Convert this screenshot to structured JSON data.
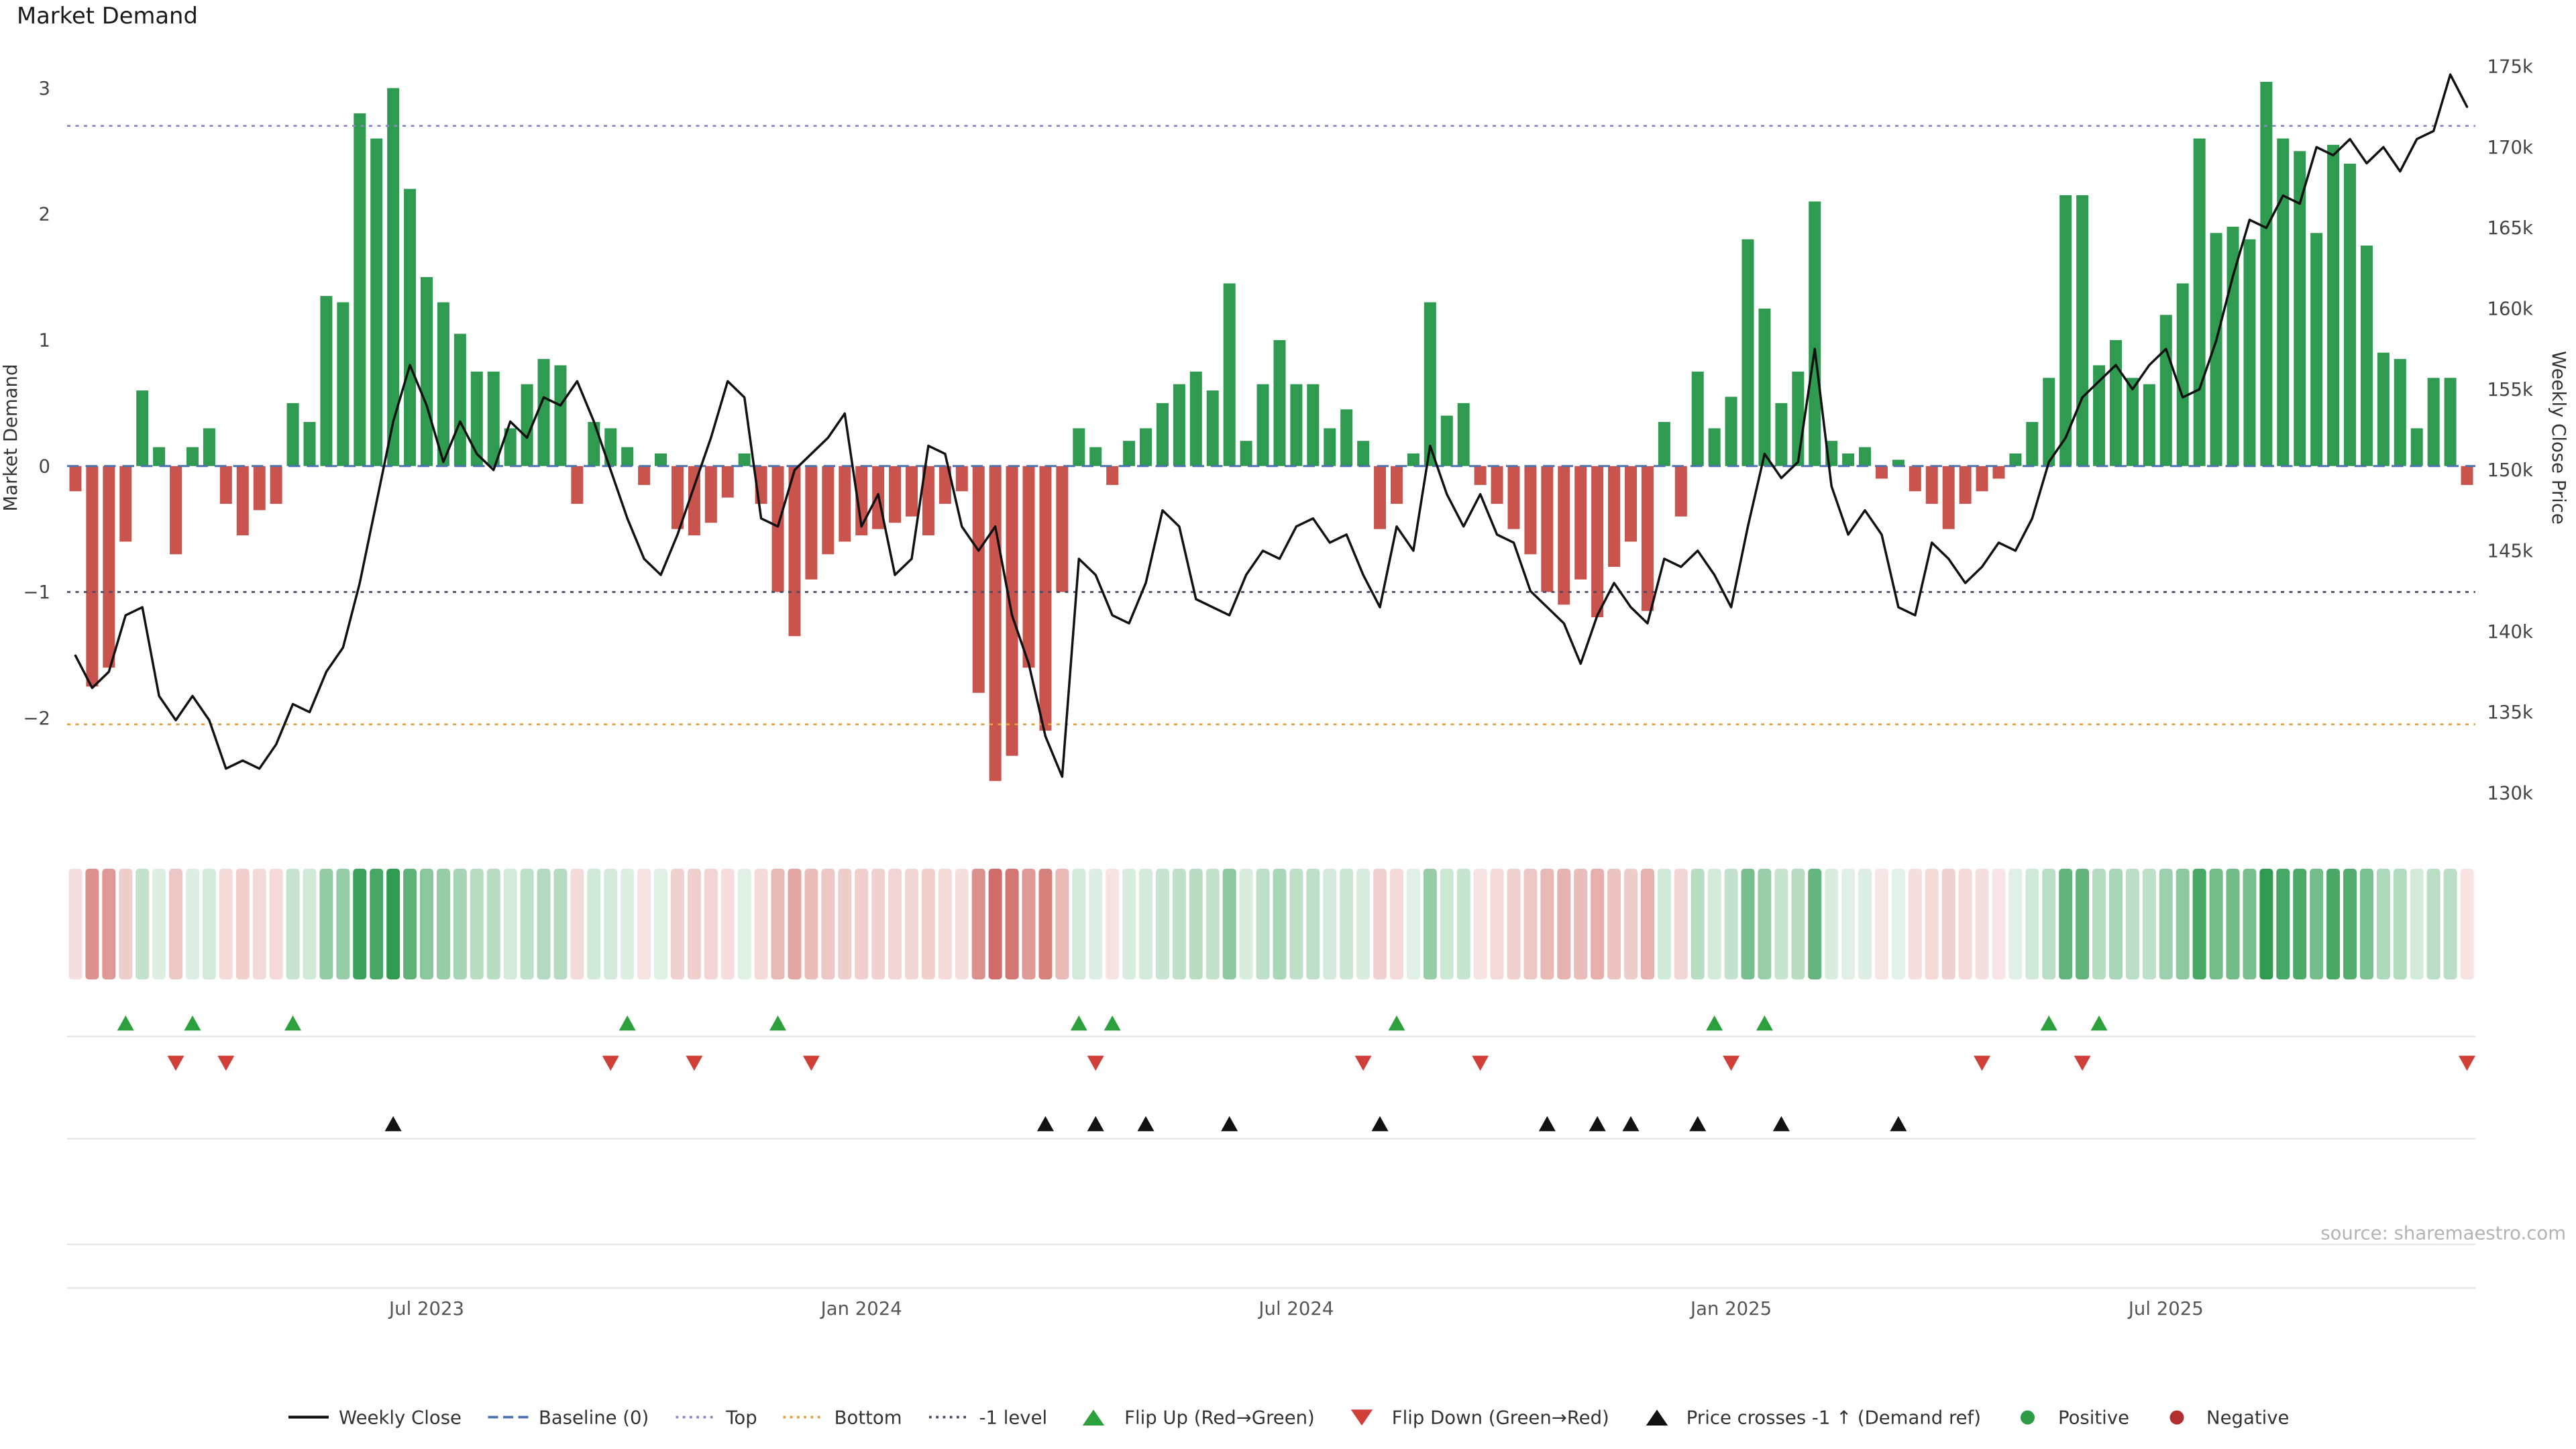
{
  "title": "Market Demand",
  "source": "source: sharemaestro.com",
  "axes": {
    "left_label": "Market Demand",
    "right_label": "Weekly Close Price",
    "left_ticks": [
      {
        "v": 3,
        "label": "3"
      },
      {
        "v": 2,
        "label": "2"
      },
      {
        "v": 1,
        "label": "1"
      },
      {
        "v": 0,
        "label": "0"
      },
      {
        "v": -1,
        "label": "−1"
      },
      {
        "v": -2,
        "label": "−2"
      }
    ],
    "right_ticks": [
      {
        "v": 175,
        "label": "175k"
      },
      {
        "v": 170,
        "label": "170k"
      },
      {
        "v": 165,
        "label": "165k"
      },
      {
        "v": 160,
        "label": "160k"
      },
      {
        "v": 155,
        "label": "155k"
      },
      {
        "v": 150,
        "label": "150k"
      },
      {
        "v": 145,
        "label": "145k"
      },
      {
        "v": 140,
        "label": "140k"
      },
      {
        "v": 135,
        "label": "135k"
      },
      {
        "v": 130,
        "label": "130k"
      }
    ],
    "x_ticks": [
      {
        "i": 21,
        "label": "Jul 2023"
      },
      {
        "i": 47,
        "label": "Jan 2024"
      },
      {
        "i": 73,
        "label": "Jul 2024"
      },
      {
        "i": 99,
        "label": "Jan 2025"
      },
      {
        "i": 125,
        "label": "Jul 2025"
      }
    ]
  },
  "colors": {
    "bar_positive": "#2e9b50",
    "bar_negative": "#c9544e",
    "price_line": "#111111",
    "baseline": "#4c72b0",
    "top": "#8888c6",
    "bottom": "#e5a13d",
    "minus1": "#4a4a68",
    "flip_up": "#2ca03c",
    "flip_down": "#d04038",
    "price_cross": "#111111",
    "positive_dot": "#2e9b47",
    "negative_dot": "#b22f2f",
    "grid": "#e7e7e7"
  },
  "legend": [
    {
      "label": "Weekly Close",
      "glyph": "line",
      "color": "#111111"
    },
    {
      "label": "Baseline (0)",
      "glyph": "dashed",
      "color": "#4c72b0"
    },
    {
      "label": "Top",
      "glyph": "dotted",
      "color": "#8888c6"
    },
    {
      "label": "Bottom",
      "glyph": "dotted",
      "color": "#e5a13d"
    },
    {
      "label": "-1 level",
      "glyph": "dotted",
      "color": "#4a4a68"
    },
    {
      "label": "Flip Up (Red→Green)",
      "glyph": "tri-up",
      "color": "#2ca03c"
    },
    {
      "label": "Flip Down (Green→Red)",
      "glyph": "tri-down",
      "color": "#d04038"
    },
    {
      "label": "Price crosses -1 ↑ (Demand ref)",
      "glyph": "tri-up",
      "color": "#111111"
    },
    {
      "label": "Positive",
      "glyph": "dot",
      "color": "#2e9b47"
    },
    {
      "label": "Negative",
      "glyph": "dot",
      "color": "#b22f2f"
    }
  ],
  "chart_data": {
    "type": "bar+line",
    "x_unit": "week_index",
    "title": "Market Demand",
    "demand_ylim": [
      -2.85,
      3.3
    ],
    "price_ylim": [
      128,
      176
    ],
    "levels": {
      "baseline": 0,
      "top": 2.7,
      "bottom": -2.05,
      "minus1": -1
    },
    "series": [
      {
        "name": "Market Demand",
        "type": "bar",
        "axis": "left",
        "values": [
          -0.2,
          -1.75,
          -1.6,
          -0.6,
          0.6,
          0.15,
          -0.7,
          0.15,
          0.3,
          -0.3,
          -0.55,
          -0.35,
          -0.3,
          0.5,
          0.35,
          1.35,
          1.3,
          2.8,
          2.6,
          3.0,
          2.2,
          1.5,
          1.3,
          1.05,
          0.75,
          0.75,
          0.3,
          0.65,
          0.85,
          0.8,
          -0.3,
          0.35,
          0.3,
          0.15,
          -0.15,
          0.1,
          -0.5,
          -0.55,
          -0.45,
          -0.25,
          0.1,
          -0.3,
          -1.0,
          -1.35,
          -0.9,
          -0.7,
          -0.6,
          -0.55,
          -0.5,
          -0.45,
          -0.4,
          -0.55,
          -0.3,
          -0.2,
          -1.8,
          -2.5,
          -2.3,
          -1.6,
          -2.1,
          -1.0,
          0.3,
          0.15,
          -0.15,
          0.2,
          0.3,
          0.5,
          0.65,
          0.75,
          0.6,
          1.45,
          0.2,
          0.65,
          1.0,
          0.65,
          0.65,
          0.3,
          0.45,
          0.2,
          -0.5,
          -0.3,
          0.1,
          1.3,
          0.4,
          0.5,
          -0.15,
          -0.3,
          -0.5,
          -0.7,
          -1.0,
          -1.1,
          -0.9,
          -1.2,
          -0.8,
          -0.6,
          -1.15,
          0.35,
          -0.4,
          0.75,
          0.3,
          0.55,
          1.8,
          1.25,
          0.5,
          0.75,
          2.1,
          0.2,
          0.1,
          0.15,
          -0.1,
          0.05,
          -0.2,
          -0.3,
          -0.5,
          -0.3,
          -0.2,
          -0.1,
          0.1,
          0.35,
          0.7,
          2.15,
          2.15,
          0.8,
          1.0,
          0.7,
          0.65,
          1.2,
          1.45,
          2.6,
          1.85,
          1.9,
          1.8,
          3.05,
          2.6,
          2.5,
          1.85,
          2.55,
          2.4,
          1.75,
          0.9,
          0.85,
          0.3,
          0.7,
          0.7,
          -0.15
        ]
      },
      {
        "name": "Weekly Close",
        "type": "line",
        "axis": "right",
        "values": [
          138.5,
          136.5,
          137.5,
          141,
          141.5,
          136,
          134.5,
          136,
          134.5,
          131.5,
          132,
          131.5,
          133,
          135.5,
          135,
          137.5,
          139,
          143,
          148,
          153,
          156.5,
          154,
          150.5,
          153,
          151,
          150,
          153,
          152,
          154.5,
          154,
          155.5,
          153,
          150,
          147,
          144.5,
          143.5,
          146,
          149,
          152,
          155.5,
          154.5,
          147,
          146.5,
          150,
          151,
          152,
          153.5,
          146.5,
          148.5,
          143.5,
          144.5,
          151.5,
          151,
          146.5,
          145,
          146.5,
          141,
          138,
          133.5,
          131,
          144.5,
          143.5,
          141,
          140.5,
          143,
          147.5,
          146.5,
          142,
          141.5,
          141,
          143.5,
          145,
          144.5,
          146.5,
          147,
          145.5,
          146,
          143.5,
          141.5,
          146.5,
          145,
          151.5,
          148.5,
          146.5,
          148.5,
          146,
          145.5,
          142.5,
          141.5,
          140.5,
          138,
          141,
          143,
          141.5,
          140.5,
          144.5,
          144,
          145,
          143.5,
          141.5,
          146.5,
          151,
          149.5,
          150.5,
          157.5,
          149,
          146,
          147.5,
          146,
          141.5,
          141,
          145.5,
          144.5,
          143,
          144,
          145.5,
          145,
          147,
          150.5,
          152,
          154.5,
          155.5,
          156.5,
          155,
          156.5,
          157.5,
          154.5,
          155,
          158,
          162,
          165.5,
          165,
          167,
          166.5,
          170,
          169.5,
          170.5,
          169,
          170,
          168.5,
          170.5,
          171,
          174.5,
          172.5
        ]
      }
    ],
    "markers": {
      "flip_up": [
        3,
        7,
        13,
        33,
        42,
        60,
        62,
        79,
        98,
        101,
        118,
        121
      ],
      "flip_down": [
        6,
        9,
        32,
        37,
        44,
        61,
        77,
        84,
        99,
        114,
        120,
        143
      ],
      "price_cross": [
        19,
        58,
        61,
        64,
        69,
        78,
        88,
        91,
        93,
        97,
        102,
        109
      ]
    }
  }
}
